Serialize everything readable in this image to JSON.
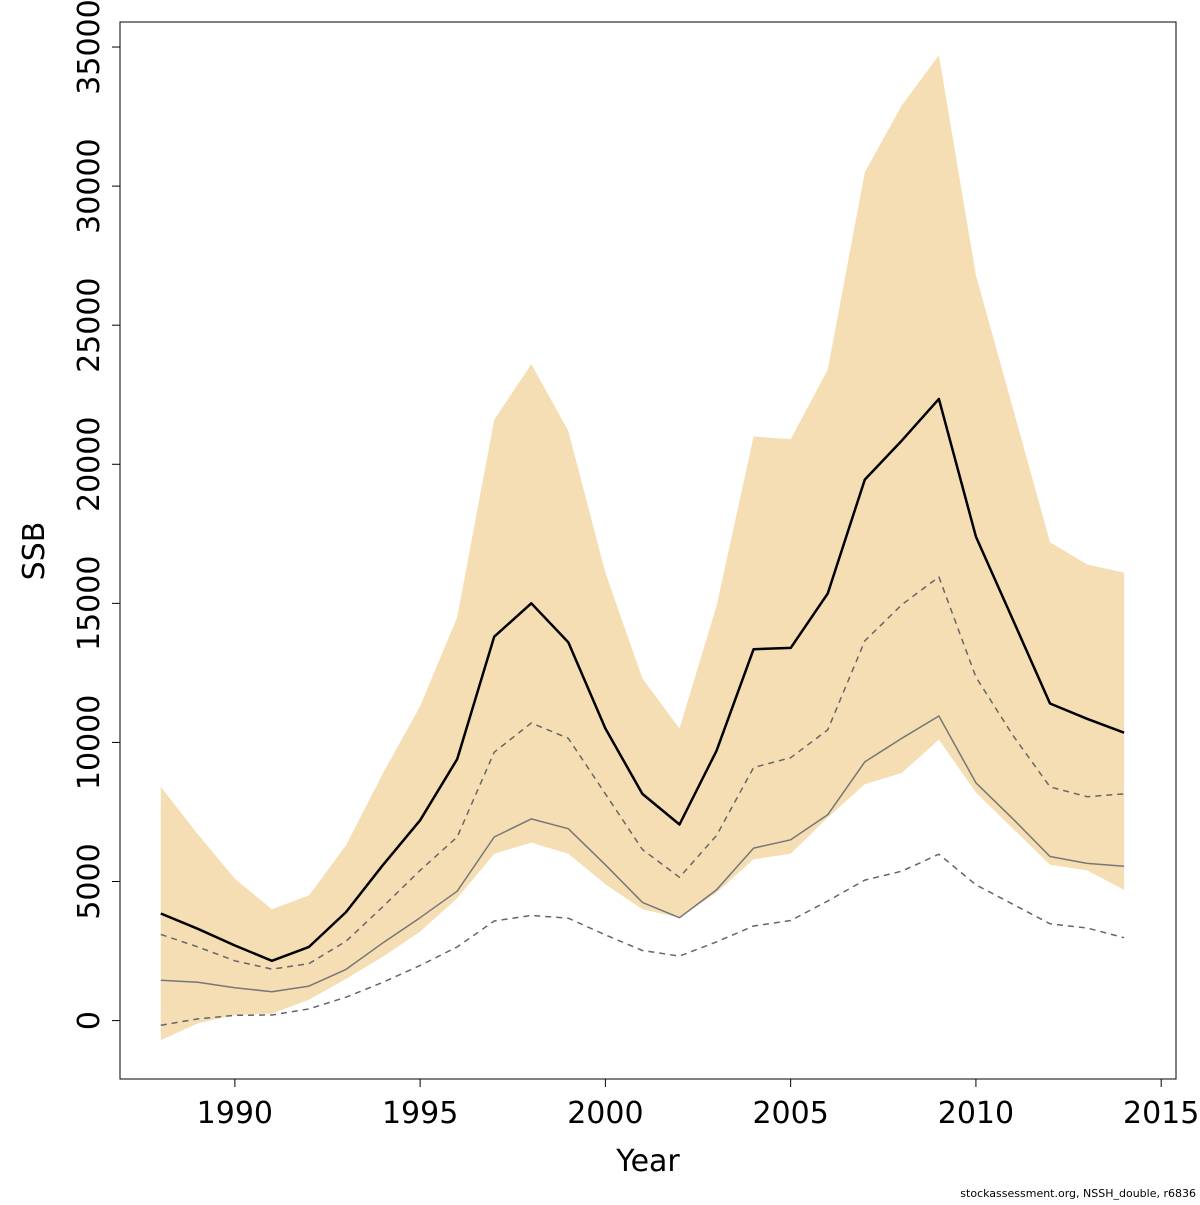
{
  "chart_data": {
    "type": "area",
    "title": "",
    "xlabel": "Year",
    "ylabel": "SSB",
    "xlim": [
      1986.9,
      2015.4
    ],
    "ylim": [
      -2100,
      35900
    ],
    "x_ticks": [
      1990,
      1995,
      2000,
      2005,
      2010,
      2015
    ],
    "y_ticks": [
      0,
      5000,
      10000,
      15000,
      20000,
      25000,
      30000,
      35000
    ],
    "grid": false,
    "legend": "none",
    "x": [
      1988,
      1989,
      1990,
      1991,
      1992,
      1993,
      1994,
      1995,
      1996,
      1997,
      1998,
      1999,
      2000,
      2001,
      2002,
      2003,
      2004,
      2005,
      2006,
      2007,
      2008,
      2009,
      2010,
      2011,
      2012,
      2013,
      2014
    ],
    "series": [
      {
        "role": "band-upper",
        "color": "#f5deb3",
        "values": [
          8400,
          6700,
          5100,
          4000,
          4500,
          6300,
          8900,
          11300,
          14500,
          21600,
          23600,
          21200,
          16100,
          12300,
          10500,
          14900,
          21000,
          20900,
          23400,
          30500,
          32900,
          34700,
          26800,
          22000,
          17200,
          16400,
          16100
        ]
      },
      {
        "role": "band-lower",
        "color": "#f5deb3",
        "values": [
          -700,
          -100,
          200,
          250,
          750,
          1500,
          2300,
          3200,
          4400,
          6000,
          6400,
          6000,
          4900,
          4000,
          3700,
          4600,
          5800,
          6000,
          7300,
          8500,
          8900,
          10100,
          8200,
          6900,
          5600,
          5400,
          4700
        ]
      },
      {
        "role": "estimate",
        "color": "#000000",
        "style": "solid-thick",
        "values": [
          3850,
          3300,
          2700,
          2150,
          2650,
          3900,
          5600,
          7200,
          9400,
          13800,
          15000,
          13600,
          10500,
          8150,
          7050,
          9700,
          13350,
          13400,
          15350,
          19450,
          20850,
          22350,
          17400,
          14400,
          11400,
          10850,
          10350
        ]
      },
      {
        "role": "dashed-upper",
        "color": "#666666",
        "style": "dashed",
        "values": [
          3100,
          2650,
          2150,
          1850,
          2050,
          2850,
          4100,
          5400,
          6600,
          9650,
          10700,
          10150,
          8150,
          6150,
          5150,
          6650,
          9100,
          9450,
          10450,
          13650,
          14950,
          15950,
          12350,
          10250,
          8400,
          8050,
          8150
        ]
      },
      {
        "role": "solid-grey",
        "color": "#777777",
        "style": "solid-thin",
        "values": [
          1450,
          1380,
          1180,
          1040,
          1240,
          1840,
          2800,
          3700,
          4650,
          6600,
          7250,
          6900,
          5600,
          4250,
          3700,
          4700,
          6200,
          6500,
          7400,
          9300,
          10150,
          10950,
          8550,
          7250,
          5900,
          5650,
          5550
        ]
      },
      {
        "role": "dashed-lower",
        "color": "#666666",
        "style": "dashed",
        "values": [
          -170,
          60,
          190,
          200,
          420,
          840,
          1380,
          1980,
          2650,
          3580,
          3780,
          3680,
          3080,
          2520,
          2320,
          2830,
          3400,
          3600,
          4300,
          5050,
          5370,
          5980,
          4880,
          4180,
          3480,
          3330,
          2980
        ]
      }
    ]
  },
  "footnote": "stockassessment.org, NSSH_double, r6836"
}
